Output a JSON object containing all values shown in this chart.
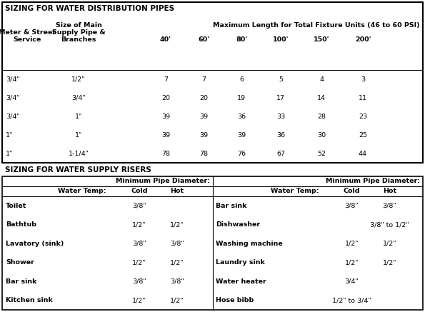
{
  "title1": "SIZING FOR WATER DISTRIBUTION PIPES",
  "subtitle1": "Maximum Length for Total Fixture Units (46 to 60 PSI)",
  "dist_rows": [
    [
      "3/4\"",
      "1/2\"",
      "7",
      "7",
      "6",
      "5",
      "4",
      "3"
    ],
    [
      "3/4\"",
      "3/4\"",
      "20",
      "20",
      "19",
      "17",
      "14",
      "11"
    ],
    [
      "3/4\"",
      "1\"",
      "39",
      "39",
      "36",
      "33",
      "28",
      "23"
    ],
    [
      "1\"",
      "1\"",
      "39",
      "39",
      "39",
      "36",
      "30",
      "25"
    ],
    [
      "1\"",
      "1-1/4\"",
      "78",
      "78",
      "76",
      "67",
      "52",
      "44"
    ]
  ],
  "title2": "SIZING FOR WATER SUPPLY RISERS",
  "riser_left_header": "Minimum Pipe Diameter:",
  "riser_right_header": "Minimum Pipe Diameter:",
  "riser_left_rows": [
    [
      "Toilet",
      "3/8\"",
      ""
    ],
    [
      "Bathtub",
      "1/2\"",
      "1/2\""
    ],
    [
      "Lavatory (sink)",
      "3/8\"",
      "3/8\""
    ],
    [
      "Shower",
      "1/2\"",
      "1/2\""
    ],
    [
      "Bar sink",
      "3/8\"",
      "3/8\""
    ],
    [
      "Kitchen sink",
      "1/2\"",
      "1/2\""
    ]
  ],
  "riser_right_rows": [
    [
      "Bar sink",
      "3/8\"",
      "3/8\""
    ],
    [
      "Dishwasher",
      "",
      "3/8\" to 1/2\""
    ],
    [
      "Washing machine",
      "1/2\"",
      "1/2\""
    ],
    [
      "Laundry sink",
      "1/2\"",
      "1/2\""
    ],
    [
      "Water heater",
      "3/4\"",
      ""
    ],
    [
      "Hose bibb",
      "1/2\" to 3/4\"",
      ""
    ]
  ],
  "bg_color": "#ffffff",
  "border_color": "#000000",
  "title_fontsize": 7.5,
  "header_fontsize": 6.8,
  "data_fontsize": 6.8
}
